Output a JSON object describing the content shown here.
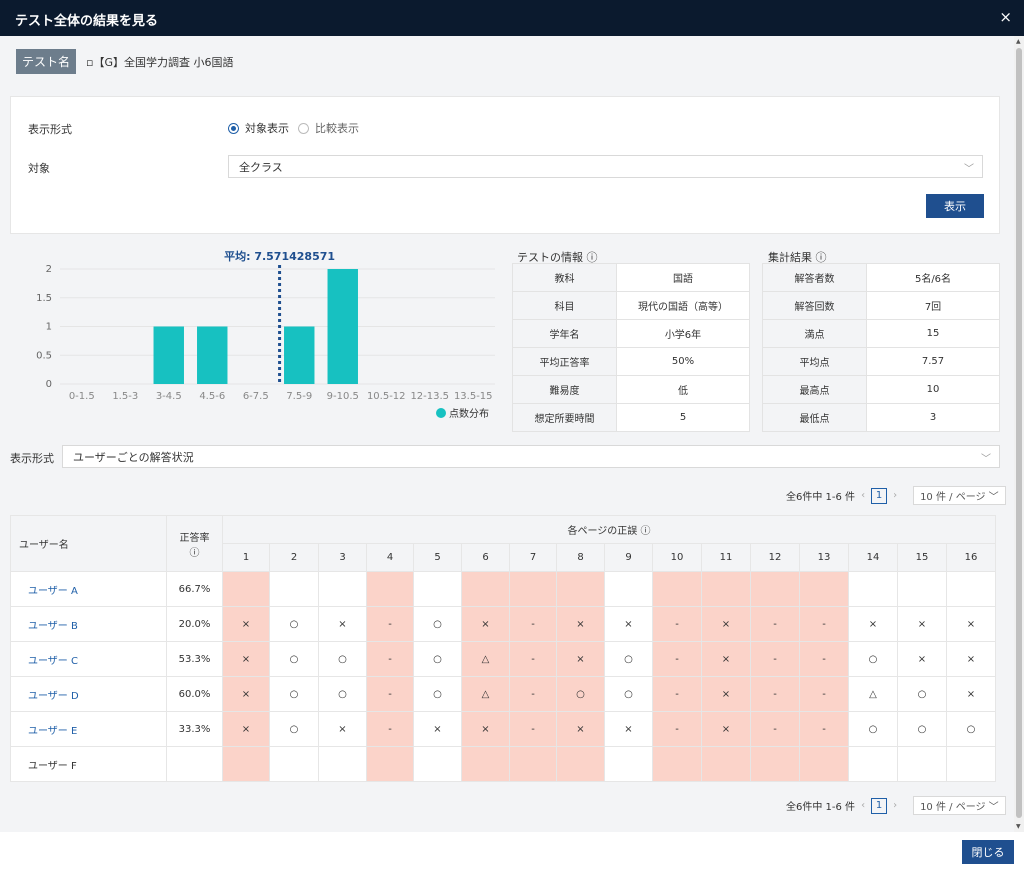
{
  "window": {
    "title": "テスト全体の結果を見る",
    "close_glyph": "×"
  },
  "test": {
    "label": "テスト名",
    "name": "▫【G】全国学力調査 小6国語"
  },
  "form": {
    "display_format_label": "表示形式",
    "radio_options": [
      "対象表示",
      "比較表示"
    ],
    "selected_radio": 0,
    "target_label": "対象",
    "target_value": "全クラス",
    "show_button": "表示"
  },
  "chart_data": {
    "type": "bar",
    "categories": [
      "0-1.5",
      "1.5-3",
      "3-4.5",
      "4.5-6",
      "6-7.5",
      "7.5-9",
      "9-10.5",
      "10.5-12",
      "12-13.5",
      "13.5-15"
    ],
    "values": [
      0,
      0,
      1,
      1,
      0,
      1,
      2,
      0,
      0,
      0
    ],
    "ylim": [
      0,
      2
    ],
    "yticks": [
      "0",
      "0.5",
      "1",
      "1.5",
      "2"
    ],
    "mean": 7.571428571,
    "mean_label": "平均: 7.571428571",
    "legend": "点数分布",
    "color": "#17c1c1",
    "legend_position": "bottom-right",
    "grid": true
  },
  "test_info": {
    "title": "テストの情報",
    "rows": [
      [
        "教科",
        "国語"
      ],
      [
        "科目",
        "現代の国語（高等）"
      ],
      [
        "学年名",
        "小学6年"
      ],
      [
        "平均正答率",
        "50%"
      ],
      [
        "難易度",
        "低"
      ],
      [
        "想定所要時間",
        "5"
      ]
    ]
  },
  "summary": {
    "title": "集計結果",
    "rows": [
      [
        "解答者数",
        "5名/6名"
      ],
      [
        "解答回数",
        "7回"
      ],
      [
        "満点",
        "15"
      ],
      [
        "平均点",
        "7.57"
      ],
      [
        "最高点",
        "10"
      ],
      [
        "最低点",
        "3"
      ]
    ]
  },
  "view": {
    "label": "表示形式",
    "value": "ユーザーごとの解答状況"
  },
  "pager": {
    "summary": "全6件中 1-6 件",
    "prev": "‹",
    "next": "›",
    "page": "1",
    "page_size": "10 件 / ページ"
  },
  "grid": {
    "user_header": "ユーザー名",
    "rate_header": "正答率",
    "pages_header": "各ページの正誤",
    "pages": [
      "1",
      "2",
      "3",
      "4",
      "5",
      "6",
      "7",
      "8",
      "9",
      "10",
      "11",
      "12",
      "13",
      "14",
      "15",
      "16"
    ],
    "pink_cols": [
      1,
      4,
      6,
      7,
      8,
      10,
      11,
      12,
      13
    ],
    "rows": [
      {
        "user": "ユーザー A",
        "rate": "66.7%",
        "link": true,
        "marks": [
          "",
          "",
          "",
          "",
          "",
          "",
          "",
          "",
          "",
          "",
          "",
          "",
          "",
          "",
          "",
          ""
        ]
      },
      {
        "user": "ユーザー B",
        "rate": "20.0%",
        "link": true,
        "marks": [
          "×",
          "○",
          "×",
          "-",
          "○",
          "×",
          "-",
          "×",
          "×",
          "-",
          "×",
          "-",
          "-",
          "×",
          "×",
          "×"
        ]
      },
      {
        "user": "ユーザー C",
        "rate": "53.3%",
        "link": true,
        "marks": [
          "×",
          "○",
          "○",
          "-",
          "○",
          "△",
          "-",
          "×",
          "○",
          "-",
          "×",
          "-",
          "-",
          "○",
          "×",
          "×"
        ]
      },
      {
        "user": "ユーザー D",
        "rate": "60.0%",
        "link": true,
        "marks": [
          "×",
          "○",
          "○",
          "-",
          "○",
          "△",
          "-",
          "○",
          "○",
          "-",
          "×",
          "-",
          "-",
          "△",
          "○",
          "×"
        ]
      },
      {
        "user": "ユーザー E",
        "rate": "33.3%",
        "link": true,
        "marks": [
          "×",
          "○",
          "×",
          "-",
          "×",
          "×",
          "-",
          "×",
          "×",
          "-",
          "×",
          "-",
          "-",
          "○",
          "○",
          "○"
        ]
      },
      {
        "user": "ユーザー F",
        "rate": "",
        "link": false,
        "marks": [
          "",
          "",
          "",
          "",
          "",
          "",
          "",
          "",
          "",
          "",
          "",
          "",
          "",
          "",
          "",
          ""
        ]
      }
    ]
  },
  "footer": {
    "close_button": "閉じる"
  },
  "colors": {
    "header_bg": "#0b1a2e",
    "primary": "#1f4f8f",
    "pink": "#fbd3c9",
    "teal": "#17c1c1"
  },
  "icons": {
    "info": "info-circle-icon",
    "chevron": "chevron-down-icon"
  }
}
